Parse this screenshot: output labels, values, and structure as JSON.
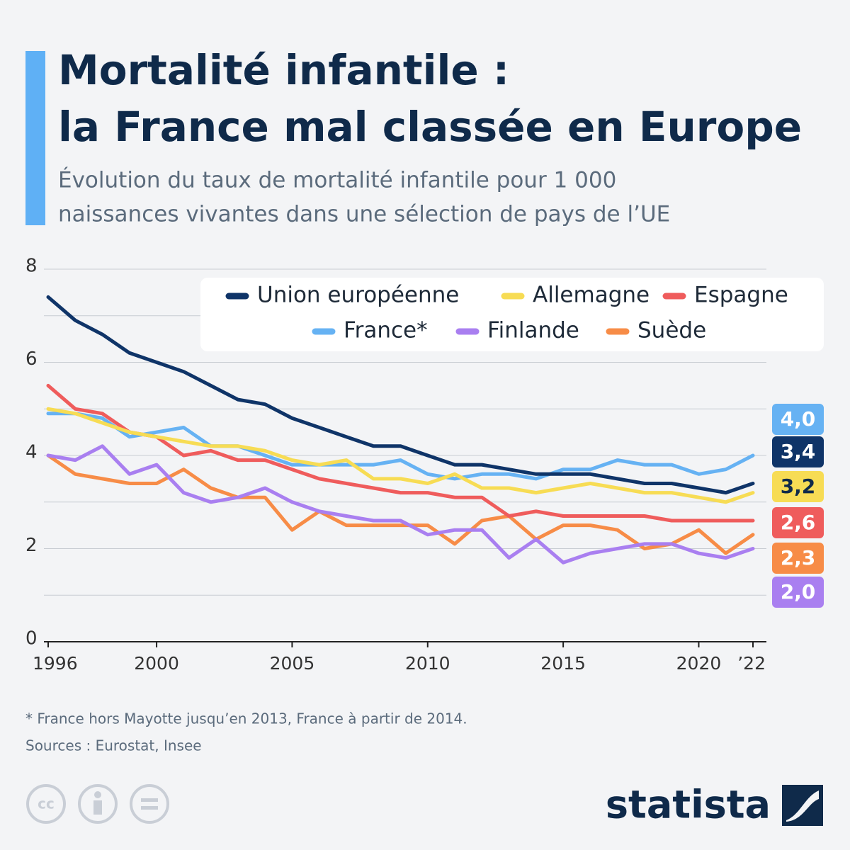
{
  "chart_data": {
    "type": "line",
    "title": [
      "Mortalité infantile :",
      "la France mal classée en Europe"
    ],
    "subtitle": [
      "Évolution du taux de mortalité infantile pour 1 000",
      "naissances vivantes dans une sélection de pays de l’UE"
    ],
    "x": [
      1996,
      1997,
      1998,
      1999,
      2000,
      2001,
      2002,
      2003,
      2004,
      2005,
      2006,
      2007,
      2008,
      2009,
      2010,
      2011,
      2012,
      2013,
      2014,
      2015,
      2016,
      2017,
      2018,
      2019,
      2020,
      2021,
      2022
    ],
    "xlim": [
      1996,
      2022
    ],
    "xticks": [
      1996,
      2000,
      2005,
      2010,
      2015,
      2020,
      {
        "value": 2022,
        "label": "’22"
      }
    ],
    "ylim": [
      0,
      8
    ],
    "yticks": [
      0,
      2,
      4,
      6,
      8
    ],
    "yminorticks": [
      1,
      3,
      5,
      7
    ],
    "grid": true,
    "series": [
      {
        "name": "Union européenne",
        "color": "#0f3468",
        "end_label": "3,4",
        "values": [
          7.4,
          6.9,
          6.6,
          6.2,
          6.0,
          5.8,
          5.5,
          5.2,
          5.1,
          4.8,
          4.6,
          4.4,
          4.2,
          4.2,
          4.0,
          3.8,
          3.8,
          3.7,
          3.6,
          3.6,
          3.6,
          3.5,
          3.4,
          3.4,
          3.3,
          3.2,
          3.4
        ]
      },
      {
        "name": "Allemagne",
        "color": "#f7dc54",
        "end_label": "3,2",
        "values": [
          5.0,
          4.9,
          4.7,
          4.5,
          4.4,
          4.3,
          4.2,
          4.2,
          4.1,
          3.9,
          3.8,
          3.9,
          3.5,
          3.5,
          3.4,
          3.6,
          3.3,
          3.3,
          3.2,
          3.3,
          3.4,
          3.3,
          3.2,
          3.2,
          3.1,
          3.0,
          3.2
        ]
      },
      {
        "name": "Espagne",
        "color": "#ef5c5c",
        "end_label": "2,6",
        "values": [
          5.5,
          5.0,
          4.9,
          4.5,
          4.4,
          4.0,
          4.1,
          3.9,
          3.9,
          3.7,
          3.5,
          3.4,
          3.3,
          3.2,
          3.2,
          3.1,
          3.1,
          2.7,
          2.8,
          2.7,
          2.7,
          2.7,
          2.7,
          2.6,
          2.6,
          2.6,
          2.6
        ]
      },
      {
        "name": "France*",
        "color": "#66b2f3",
        "end_label": "4,0",
        "values": [
          4.9,
          4.9,
          4.8,
          4.4,
          4.5,
          4.6,
          4.2,
          4.2,
          4.0,
          3.8,
          3.8,
          3.8,
          3.8,
          3.9,
          3.6,
          3.5,
          3.6,
          3.6,
          3.5,
          3.7,
          3.7,
          3.9,
          3.8,
          3.8,
          3.6,
          3.7,
          4.0
        ]
      },
      {
        "name": "Finlande",
        "color": "#a97ff0",
        "end_label": "2,0",
        "values": [
          4.0,
          3.9,
          4.2,
          3.6,
          3.8,
          3.2,
          3.0,
          3.1,
          3.3,
          3.0,
          2.8,
          2.7,
          2.6,
          2.6,
          2.3,
          2.4,
          2.4,
          1.8,
          2.2,
          1.7,
          1.9,
          2.0,
          2.1,
          2.1,
          1.9,
          1.8,
          2.0
        ]
      },
      {
        "name": "Suède",
        "color": "#f78c47",
        "end_label": "2,3",
        "values": [
          4.0,
          3.6,
          3.5,
          3.4,
          3.4,
          3.7,
          3.3,
          3.1,
          3.1,
          2.4,
          2.8,
          2.5,
          2.5,
          2.5,
          2.5,
          2.1,
          2.6,
          2.7,
          2.2,
          2.5,
          2.5,
          2.4,
          2.0,
          2.1,
          2.4,
          1.9,
          2.3
        ]
      }
    ],
    "footnote": "* France hors Mayotte jusqu’en 2013, France à partir de 2014.",
    "source": "Sources : Eurostat, Insee",
    "brand": "statista"
  }
}
